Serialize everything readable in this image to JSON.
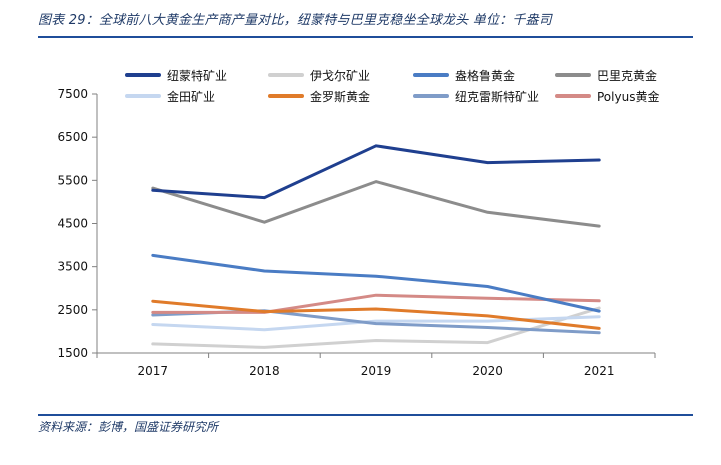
{
  "figure_title": "图表 29：全球前八大黄金生产商产量对比，纽蒙特与巴里克稳坐全球龙头  单位：千盎司",
  "source": "资料来源：彭博，国盛证券研究所",
  "chart_data": {
    "type": "line",
    "title": "图表 29：全球前八大黄金生产商产量对比，纽蒙特与巴里克稳坐全球龙头  单位：千盎司",
    "xlabel": "",
    "ylabel": "千盎司",
    "categories": [
      "2017",
      "2018",
      "2019",
      "2020",
      "2021"
    ],
    "ylim": [
      1500,
      7500
    ],
    "yticks": [
      1500,
      2500,
      3500,
      4500,
      5500,
      6500,
      7500
    ],
    "grid": false,
    "legend_position": "top",
    "series": [
      {
        "name": "纽蒙特矿业",
        "color": "#1f3f8f",
        "values": [
          5270,
          5100,
          6300,
          5910,
          5970
        ]
      },
      {
        "name": "伊戈尔矿业",
        "color": "#d0d0d0",
        "values": [
          1710,
          1630,
          1790,
          1740,
          2540
        ]
      },
      {
        "name": "盎格鲁黄金",
        "color": "#4a7cc4",
        "values": [
          3760,
          3400,
          3280,
          3040,
          2470
        ]
      },
      {
        "name": "巴里克黄金",
        "color": "#8c8c8c",
        "values": [
          5320,
          4530,
          5470,
          4760,
          4440
        ]
      },
      {
        "name": "金田矿业",
        "color": "#c5d7f0",
        "values": [
          2160,
          2040,
          2240,
          2240,
          2340
        ]
      },
      {
        "name": "金罗斯黄金",
        "color": "#e07b2a",
        "values": [
          2700,
          2460,
          2520,
          2360,
          2070
        ]
      },
      {
        "name": "纽克雷斯特矿业",
        "color": "#7f9cc8",
        "values": [
          2380,
          2480,
          2180,
          2090,
          1970
        ]
      },
      {
        "name": "Polyus黄金",
        "color": "#d48a86",
        "values": [
          2440,
          2440,
          2840,
          2770,
          2710
        ]
      }
    ]
  }
}
